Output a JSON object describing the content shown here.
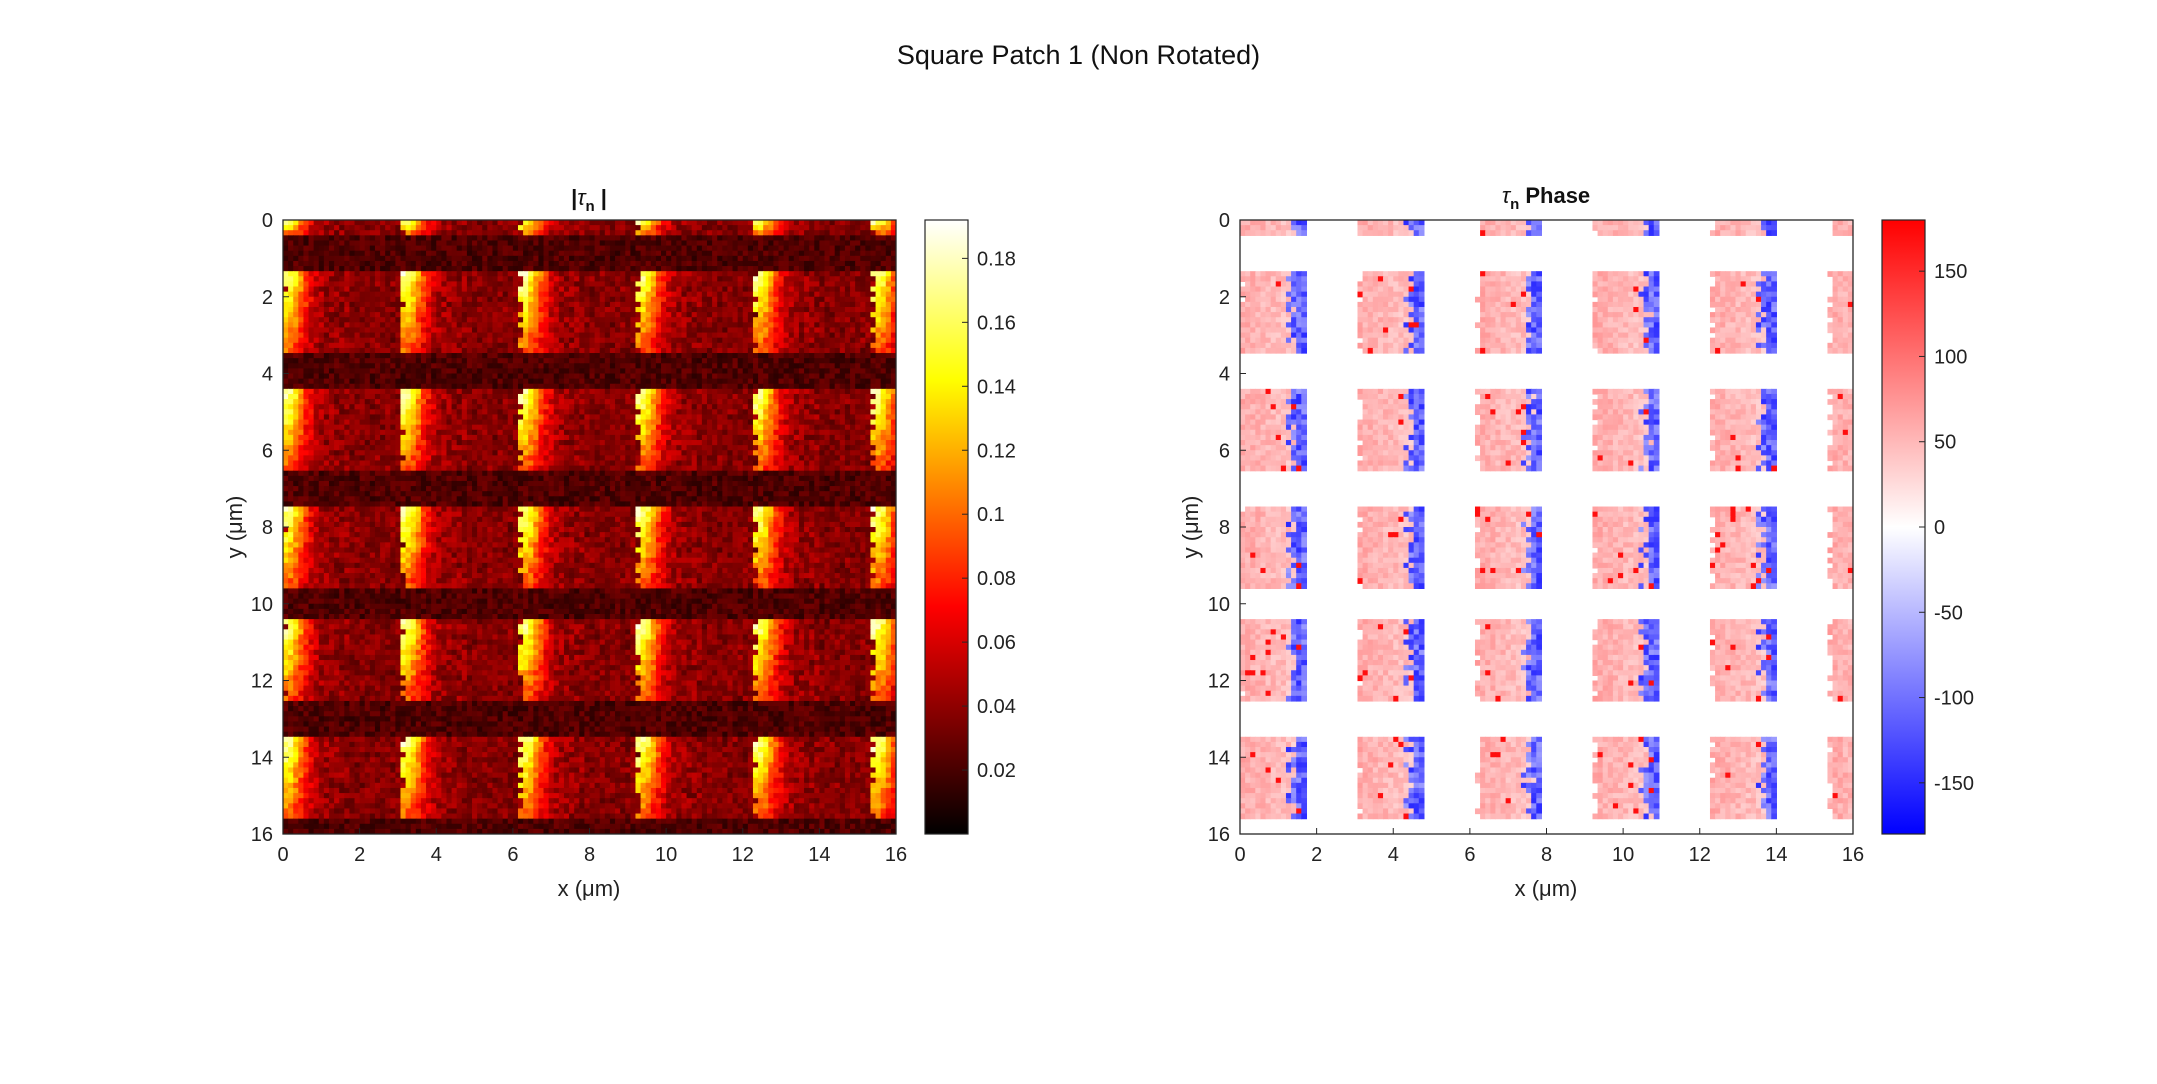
{
  "figure": {
    "title": "Square Patch 1 (Non Rotated)"
  },
  "chart_data": [
    {
      "type": "heatmap",
      "title": "|τ_n|",
      "title_parts": {
        "left": "|",
        "symbol": "τ",
        "subscript": "n",
        "right": " |"
      },
      "xlabel": "x (μm)",
      "ylabel": "y (μm)",
      "xlim": [
        0,
        16
      ],
      "ylim": [
        0,
        16
      ],
      "y_direction": "reversed",
      "xticks": [
        0,
        2,
        4,
        6,
        8,
        10,
        12,
        14,
        16
      ],
      "yticks": [
        0,
        2,
        4,
        6,
        8,
        10,
        12,
        14,
        16
      ],
      "colormap": "hot",
      "colorbar": {
        "range": [
          0,
          0.192
        ],
        "ticks": [
          0.02,
          0.04,
          0.06,
          0.08,
          0.1,
          0.12,
          0.14,
          0.16,
          0.18
        ]
      },
      "pattern": {
        "columns_x": [
          0,
          3.1,
          6.2,
          9.25,
          12.3,
          15.4
        ],
        "rows_y": [
          [
            1.3,
            3.5
          ],
          [
            4.4,
            6.5
          ],
          [
            7.4,
            9.6
          ],
          [
            10.4,
            12.5
          ],
          [
            13.5,
            15.6
          ]
        ],
        "top_partial_row": [
          0,
          0.4
        ],
        "patch_width": 1.7,
        "bright_edge": "left",
        "peak_value": 0.18,
        "background_value": 0.012
      }
    },
    {
      "type": "heatmap",
      "title": "τ_n Phase",
      "title_parts": {
        "symbol": "τ",
        "subscript": "n",
        "right": " Phase"
      },
      "xlabel": "x (μm)",
      "ylabel": "y (μm)",
      "xlim": [
        0,
        16
      ],
      "ylim": [
        0,
        16
      ],
      "y_direction": "reversed",
      "xticks": [
        0,
        2,
        4,
        6,
        8,
        10,
        12,
        14,
        16
      ],
      "yticks": [
        0,
        2,
        4,
        6,
        8,
        10,
        12,
        14,
        16
      ],
      "colormap": "diverging blue-white-red",
      "colorbar": {
        "range": [
          -180,
          180
        ],
        "ticks": [
          150,
          100,
          50,
          0,
          -50,
          -100,
          -150
        ]
      },
      "pattern": {
        "columns_x": [
          0,
          3.1,
          6.2,
          9.25,
          12.3,
          15.4
        ],
        "rows_y": [
          [
            1.3,
            3.5
          ],
          [
            4.4,
            6.5
          ],
          [
            7.4,
            9.6
          ],
          [
            10.4,
            12.5
          ],
          [
            13.5,
            15.6
          ]
        ],
        "top_partial_row": [
          0,
          0.4
        ],
        "patch_width": 1.7,
        "left_phase": 60,
        "right_edge_phase": -150,
        "outside": "masked (blank)"
      }
    }
  ]
}
